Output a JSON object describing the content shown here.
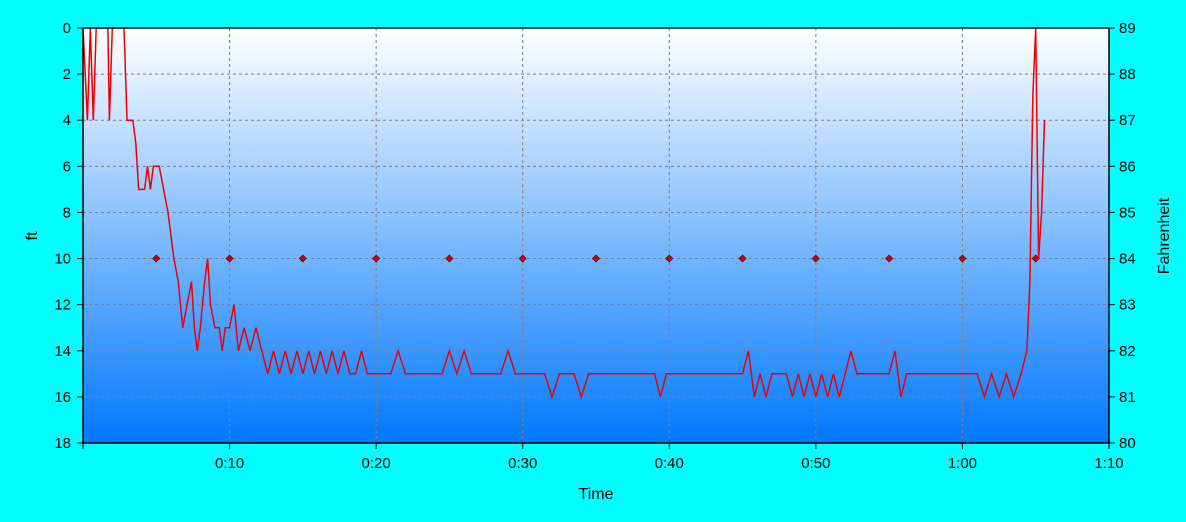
{
  "chart_data": {
    "type": "line",
    "xlabel": "Time",
    "ylabel_left": "ft",
    "ylabel_right": "Fahrenheit",
    "x_ticks": [
      "0:10",
      "0:20",
      "0:30",
      "0:40",
      "0:50",
      "1:00",
      "1:10"
    ],
    "xlim_minutes": [
      0,
      70
    ],
    "y_left_ticks": [
      "0",
      "2",
      "4",
      "6",
      "8",
      "10",
      "12",
      "14",
      "16",
      "18"
    ],
    "ylim_left_depth_ft": [
      0,
      18
    ],
    "y_left_inverted": true,
    "y_right_ticks": [
      "89",
      "88",
      "87",
      "86",
      "85",
      "84",
      "83",
      "82",
      "81",
      "80"
    ],
    "ylim_right_fahrenheit": [
      80,
      89
    ],
    "grid": true,
    "colors": {
      "line": "#ee0000",
      "marker": "#cc0000",
      "grid": "#808080",
      "background_top": "#ffffff",
      "background_bottom": "#0078ff",
      "frame": "#00ffff"
    },
    "series": [
      {
        "kind": "depth",
        "axis": "left",
        "points_min_ft": [
          [
            0,
            0
          ],
          [
            0.3,
            4
          ],
          [
            0.5,
            0
          ],
          [
            0.7,
            4
          ],
          [
            0.9,
            0
          ],
          [
            1.0,
            0
          ],
          [
            1.7,
            0
          ],
          [
            1.8,
            4
          ],
          [
            2.0,
            0
          ],
          [
            2.2,
            0
          ],
          [
            2.8,
            0
          ],
          [
            3.0,
            4
          ],
          [
            3.4,
            4
          ],
          [
            3.6,
            5
          ],
          [
            3.8,
            7
          ],
          [
            4.2,
            7
          ],
          [
            4.4,
            6
          ],
          [
            4.6,
            7
          ],
          [
            4.8,
            6
          ],
          [
            5.2,
            6
          ],
          [
            5.5,
            7
          ],
          [
            5.8,
            8
          ],
          [
            6.2,
            10
          ],
          [
            6.5,
            11
          ],
          [
            6.8,
            13
          ],
          [
            7.1,
            12
          ],
          [
            7.4,
            11
          ],
          [
            7.6,
            13
          ],
          [
            7.8,
            14
          ],
          [
            8.0,
            13
          ],
          [
            8.3,
            11
          ],
          [
            8.5,
            10
          ],
          [
            8.7,
            12
          ],
          [
            9.0,
            13
          ],
          [
            9.3,
            13
          ],
          [
            9.5,
            14
          ],
          [
            9.7,
            13
          ],
          [
            10.0,
            13
          ],
          [
            10.3,
            12
          ],
          [
            10.6,
            14
          ],
          [
            11.0,
            13
          ],
          [
            11.4,
            14
          ],
          [
            11.8,
            13
          ],
          [
            12.2,
            14
          ],
          [
            12.6,
            15
          ],
          [
            13.0,
            14
          ],
          [
            13.4,
            15
          ],
          [
            13.8,
            14
          ],
          [
            14.2,
            15
          ],
          [
            14.6,
            14
          ],
          [
            15.0,
            15
          ],
          [
            15.4,
            14
          ],
          [
            15.8,
            15
          ],
          [
            16.2,
            14
          ],
          [
            16.6,
            15
          ],
          [
            17.0,
            14
          ],
          [
            17.4,
            15
          ],
          [
            17.8,
            14
          ],
          [
            18.2,
            15
          ],
          [
            18.6,
            15
          ],
          [
            19.0,
            14
          ],
          [
            19.4,
            15
          ],
          [
            20.0,
            15
          ],
          [
            21.0,
            15
          ],
          [
            21.5,
            14
          ],
          [
            22.0,
            15
          ],
          [
            23.0,
            15
          ],
          [
            24.5,
            15
          ],
          [
            25.0,
            14
          ],
          [
            25.5,
            15
          ],
          [
            26.0,
            14
          ],
          [
            26.5,
            15
          ],
          [
            28.5,
            15
          ],
          [
            29.0,
            14
          ],
          [
            29.5,
            15
          ],
          [
            31.5,
            15
          ],
          [
            32.0,
            16
          ],
          [
            32.5,
            15
          ],
          [
            33.5,
            15
          ],
          [
            34.0,
            16
          ],
          [
            34.5,
            15
          ],
          [
            39.0,
            15
          ],
          [
            39.4,
            16
          ],
          [
            39.8,
            15
          ],
          [
            45.0,
            15
          ],
          [
            45.4,
            14
          ],
          [
            45.8,
            16
          ],
          [
            46.2,
            15
          ],
          [
            46.6,
            16
          ],
          [
            47.0,
            15
          ],
          [
            48.0,
            15
          ],
          [
            48.4,
            16
          ],
          [
            48.8,
            15
          ],
          [
            49.2,
            16
          ],
          [
            49.6,
            15
          ],
          [
            50.0,
            16
          ],
          [
            50.4,
            15
          ],
          [
            50.8,
            16
          ],
          [
            51.2,
            15
          ],
          [
            51.6,
            16
          ],
          [
            52.0,
            15
          ],
          [
            52.4,
            14
          ],
          [
            52.8,
            15
          ],
          [
            55.0,
            15
          ],
          [
            55.4,
            14
          ],
          [
            55.8,
            16
          ],
          [
            56.2,
            15
          ],
          [
            61.0,
            15
          ],
          [
            61.5,
            16
          ],
          [
            62.0,
            15
          ],
          [
            62.5,
            16
          ],
          [
            63.0,
            15
          ],
          [
            63.5,
            16
          ],
          [
            64.0,
            15
          ],
          [
            64.4,
            14
          ],
          [
            64.6,
            11
          ],
          [
            64.8,
            3
          ],
          [
            65.0,
            0
          ],
          [
            65.2,
            10
          ],
          [
            65.4,
            8
          ],
          [
            65.6,
            4
          ]
        ]
      },
      {
        "kind": "temperature",
        "axis": "right",
        "marker": "diamond",
        "points_min_f": [
          [
            5,
            84
          ],
          [
            10,
            84
          ],
          [
            15,
            84
          ],
          [
            20,
            84
          ],
          [
            25,
            84
          ],
          [
            30,
            84
          ],
          [
            35,
            84
          ],
          [
            40,
            84
          ],
          [
            45,
            84
          ],
          [
            50,
            84
          ],
          [
            55,
            84
          ],
          [
            60,
            84
          ],
          [
            65,
            84
          ]
        ]
      }
    ]
  }
}
